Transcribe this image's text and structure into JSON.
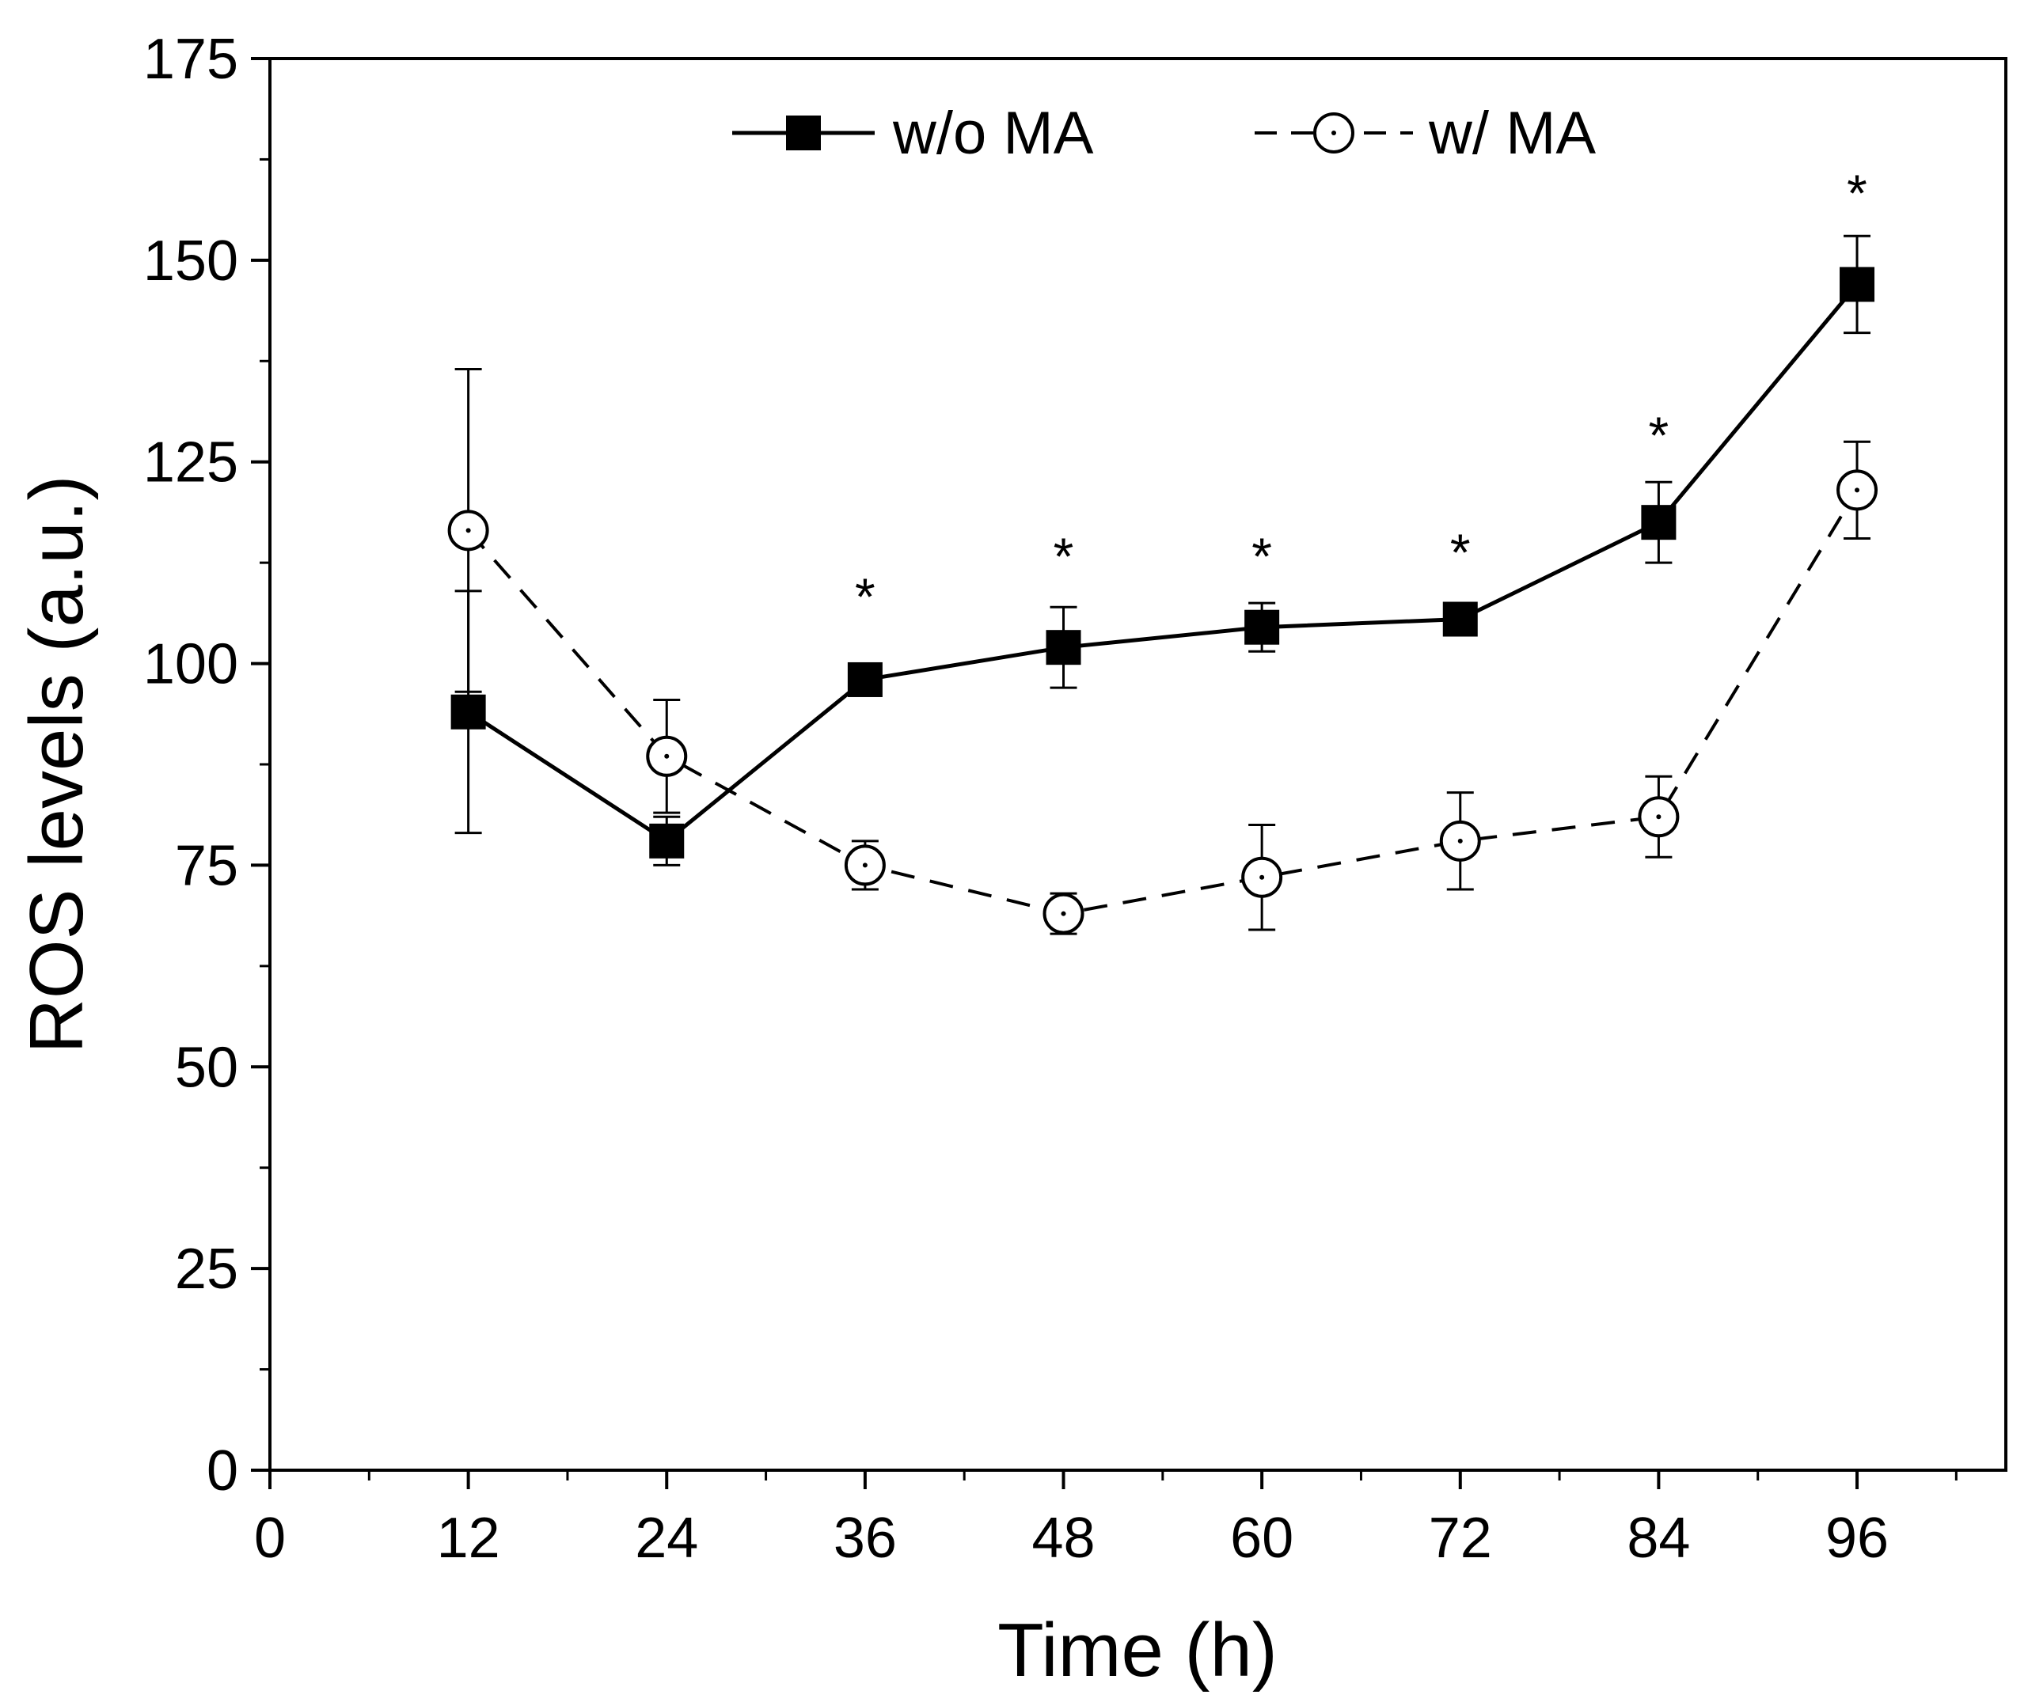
{
  "chart_data": {
    "type": "line",
    "xlabel": "Time (h)",
    "ylabel": "ROS levels (a.u.)",
    "xlim": [
      0,
      105
    ],
    "ylim": [
      0,
      175
    ],
    "xticks": [
      0,
      12,
      24,
      36,
      48,
      60,
      72,
      84,
      96
    ],
    "yticks": [
      0,
      25,
      50,
      75,
      100,
      125,
      150,
      175
    ],
    "x": [
      12,
      24,
      36,
      48,
      60,
      72,
      84,
      96
    ],
    "series": [
      {
        "name": "w/o MA",
        "marker": "filled-square",
        "line": "solid",
        "values": [
          94,
          78,
          98,
          102,
          104.5,
          105.5,
          117.5,
          147
        ],
        "errors": [
          15,
          3,
          1.5,
          5,
          3,
          1.5,
          5,
          6
        ]
      },
      {
        "name": "w/ MA",
        "marker": "open-circle",
        "line": "dashed",
        "values": [
          116.5,
          88.5,
          75,
          69,
          73.5,
          78,
          81,
          121.5
        ],
        "errors": [
          20,
          7,
          3,
          2.5,
          6.5,
          6,
          5,
          6
        ]
      }
    ],
    "annotations": [
      {
        "x": 36,
        "y": 109,
        "text": "*"
      },
      {
        "x": 48,
        "y": 114,
        "text": "*"
      },
      {
        "x": 60,
        "y": 114,
        "text": "*"
      },
      {
        "x": 72,
        "y": 114.5,
        "text": "*"
      },
      {
        "x": 84,
        "y": 129,
        "text": "*"
      },
      {
        "x": 96,
        "y": 159,
        "text": "*"
      }
    ],
    "legend": {
      "position": "top-center",
      "entries": [
        "w/o MA",
        "w/ MA"
      ]
    },
    "grid": false
  }
}
